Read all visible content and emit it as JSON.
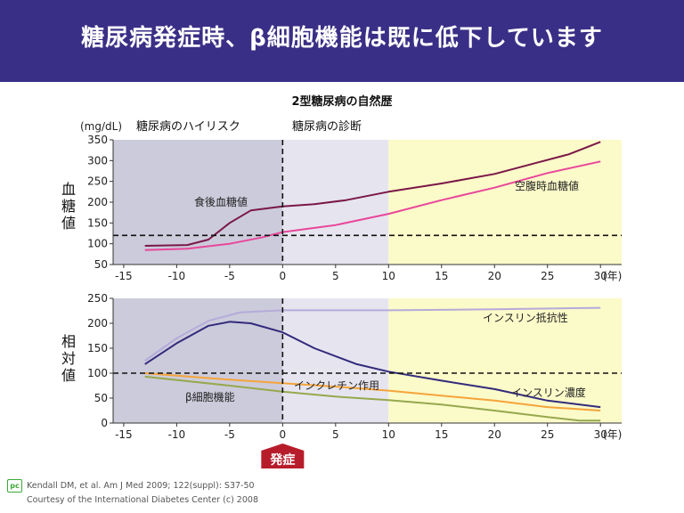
{
  "header": {
    "title": "糖尿病発症時、β細胞機能は既に低下しています"
  },
  "chart_data": [
    {
      "type": "line",
      "title": "2型糖尿病の自然歴",
      "unit_label": "(mg/dL)",
      "ylabel": "血糖値",
      "x_unit": "(年)",
      "xlim": [
        -16,
        32
      ],
      "ylim": [
        50,
        350
      ],
      "xticks": [
        -15,
        -10,
        -5,
        0,
        5,
        10,
        15,
        20,
        25,
        30
      ],
      "yticks": [
        50,
        100,
        150,
        200,
        250,
        300,
        350
      ],
      "phase_labels": {
        "high_risk": "糖尿病のハイリスク",
        "diagnosis": "糖尿病の診断"
      },
      "reference_line": 120,
      "series": [
        {
          "name": "食後血糖値",
          "color": "#7a1748",
          "points": [
            [
              -13,
              95
            ],
            [
              -9,
              97
            ],
            [
              -7,
              110
            ],
            [
              -5,
              150
            ],
            [
              -3,
              180
            ],
            [
              0,
              190
            ],
            [
              3,
              195
            ],
            [
              6,
              205
            ],
            [
              10,
              225
            ],
            [
              15,
              245
            ],
            [
              20,
              268
            ],
            [
              24,
              295
            ],
            [
              27,
              315
            ],
            [
              30,
              345
            ]
          ]
        },
        {
          "name": "空腹時血糖値",
          "color": "#e8479a",
          "points": [
            [
              -13,
              85
            ],
            [
              -9,
              88
            ],
            [
              -5,
              100
            ],
            [
              -2,
              115
            ],
            [
              0,
              128
            ],
            [
              5,
              145
            ],
            [
              10,
              172
            ],
            [
              15,
              205
            ],
            [
              20,
              235
            ],
            [
              25,
              270
            ],
            [
              30,
              298
            ]
          ]
        }
      ]
    },
    {
      "type": "line",
      "ylabel": "相対値",
      "x_unit": "(年)",
      "xlim": [
        -16,
        32
      ],
      "ylim": [
        0,
        250
      ],
      "xticks": [
        -15,
        -10,
        -5,
        0,
        5,
        10,
        15,
        20,
        25,
        30
      ],
      "yticks": [
        0,
        50,
        100,
        150,
        200,
        250
      ],
      "reference_line": 100,
      "onset_label": "発症",
      "series": [
        {
          "name": "インスリン抵抗性",
          "color": "#b5abda",
          "points": [
            [
              -13,
              125
            ],
            [
              -10,
              170
            ],
            [
              -7,
              205
            ],
            [
              -4,
              222
            ],
            [
              0,
              226
            ],
            [
              10,
              226
            ],
            [
              20,
              228
            ],
            [
              30,
              231
            ]
          ]
        },
        {
          "name": "インスリン濃度",
          "color": "#322a7b",
          "points": [
            [
              -13,
              118
            ],
            [
              -10,
              160
            ],
            [
              -7,
              195
            ],
            [
              -5,
              203
            ],
            [
              -3,
              200
            ],
            [
              0,
              182
            ],
            [
              3,
              150
            ],
            [
              7,
              118
            ],
            [
              10,
              103
            ],
            [
              15,
              85
            ],
            [
              20,
              68
            ],
            [
              25,
              45
            ],
            [
              30,
              32
            ]
          ]
        },
        {
          "name": "インクレチン作用",
          "color": "#f5a43a",
          "points": [
            [
              -13,
              100
            ],
            [
              -5,
              87
            ],
            [
              0,
              80
            ],
            [
              5,
              73
            ],
            [
              10,
              65
            ],
            [
              15,
              55
            ],
            [
              20,
              45
            ],
            [
              25,
              32
            ],
            [
              30,
              25
            ]
          ]
        },
        {
          "name": "β細胞機能",
          "color": "#96a84e",
          "points": [
            [
              -13,
              93
            ],
            [
              -5,
              75
            ],
            [
              0,
              63
            ],
            [
              5,
              53
            ],
            [
              10,
              46
            ],
            [
              15,
              37
            ],
            [
              20,
              25
            ],
            [
              25,
              12
            ],
            [
              28,
              5
            ],
            [
              30,
              5
            ]
          ]
        }
      ]
    }
  ],
  "footer": {
    "logo": "pc",
    "citation": "Kendall DM, et al. Am J Med 2009; 122(suppl): S37-50",
    "courtesy": "Courtesy of the International Diabetes Center (c) 2008"
  }
}
